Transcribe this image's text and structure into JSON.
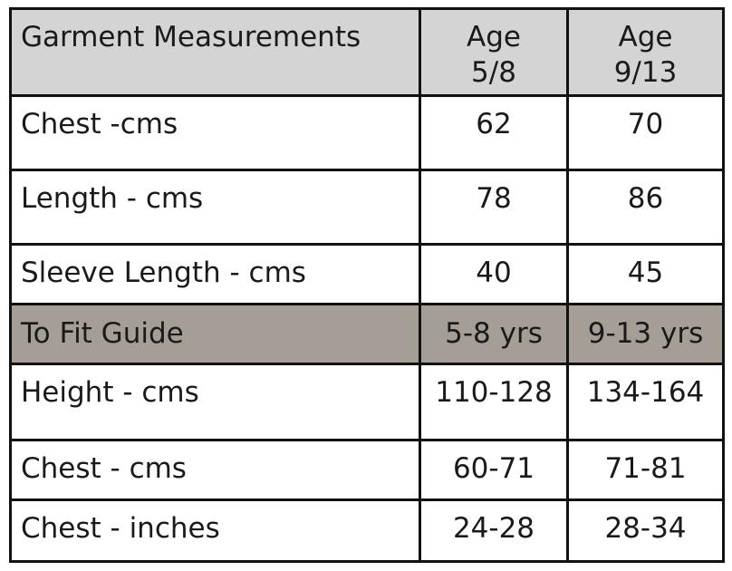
{
  "table": {
    "header": [
      "Garment Measurements",
      [
        "Age",
        "5/8"
      ],
      [
        "Age",
        "9/13"
      ]
    ],
    "rows": [
      [
        "Chest -cms",
        "62",
        "70"
      ],
      [
        "Length - cms",
        "78",
        "86"
      ],
      [
        "Sleeve Length - cms",
        "40",
        "45"
      ],
      [
        "To Fit Guide",
        "5-8 yrs",
        "9-13 yrs"
      ],
      [
        "Height - cms",
        "110-128",
        "134-164"
      ],
      [
        "Chest - cms",
        "60-71",
        "71-81"
      ],
      [
        "Chest - inches",
        "24-28",
        "28-34"
      ]
    ]
  }
}
